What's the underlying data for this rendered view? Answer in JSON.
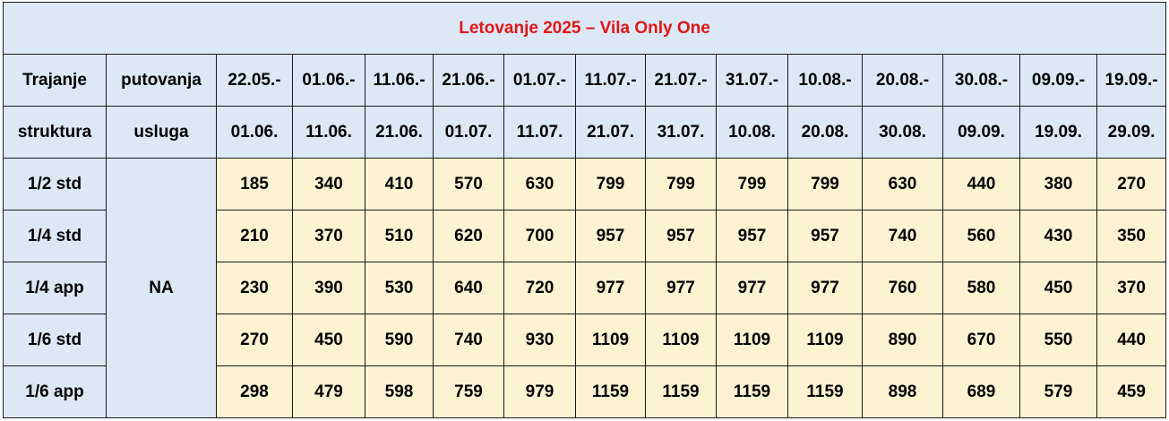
{
  "title": "Letovanje 2025 – Vila Only One",
  "header": {
    "row1_col1": "Trajanje",
    "row1_col2": "putovanja",
    "row2_col1": "struktura",
    "row2_col2": "usluga",
    "periods": [
      {
        "from": "22.05.-",
        "to": "01.06."
      },
      {
        "from": "01.06.-",
        "to": "11.06."
      },
      {
        "from": "11.06.-",
        "to": "21.06."
      },
      {
        "from": "21.06.-",
        "to": "01.07."
      },
      {
        "from": "01.07.-",
        "to": "11.07."
      },
      {
        "from": "11.07.-",
        "to": "21.07."
      },
      {
        "from": "21.07.-",
        "to": "31.07."
      },
      {
        "from": "31.07.-",
        "to": "10.08."
      },
      {
        "from": "10.08.-",
        "to": "20.08."
      },
      {
        "from": "20.08.-",
        "to": "30.08."
      },
      {
        "from": "30.08.-",
        "to": "09.09."
      },
      {
        "from": "09.09.-",
        "to": "19.09."
      },
      {
        "from": "19.09.-",
        "to": "29.09."
      }
    ]
  },
  "service": "NA",
  "rows": [
    {
      "structure": "1/2 std",
      "prices": [
        "185",
        "340",
        "410",
        "570",
        "630",
        "799",
        "799",
        "799",
        "799",
        "630",
        "440",
        "380",
        "270"
      ]
    },
    {
      "structure": "1/4 std",
      "prices": [
        "210",
        "370",
        "510",
        "620",
        "700",
        "957",
        "957",
        "957",
        "957",
        "740",
        "560",
        "430",
        "350"
      ]
    },
    {
      "structure": "1/4 app",
      "prices": [
        "230",
        "390",
        "530",
        "640",
        "720",
        "977",
        "977",
        "977",
        "977",
        "760",
        "580",
        "450",
        "370"
      ]
    },
    {
      "structure": "1/6 std",
      "prices": [
        "270",
        "450",
        "590",
        "740",
        "930",
        "1109",
        "1109",
        "1109",
        "1109",
        "890",
        "670",
        "550",
        "440"
      ]
    },
    {
      "structure": "1/6 app",
      "prices": [
        "298",
        "479",
        "598",
        "759",
        "979",
        "1159",
        "1159",
        "1159",
        "1159",
        "898",
        "689",
        "579",
        "459"
      ]
    }
  ]
}
